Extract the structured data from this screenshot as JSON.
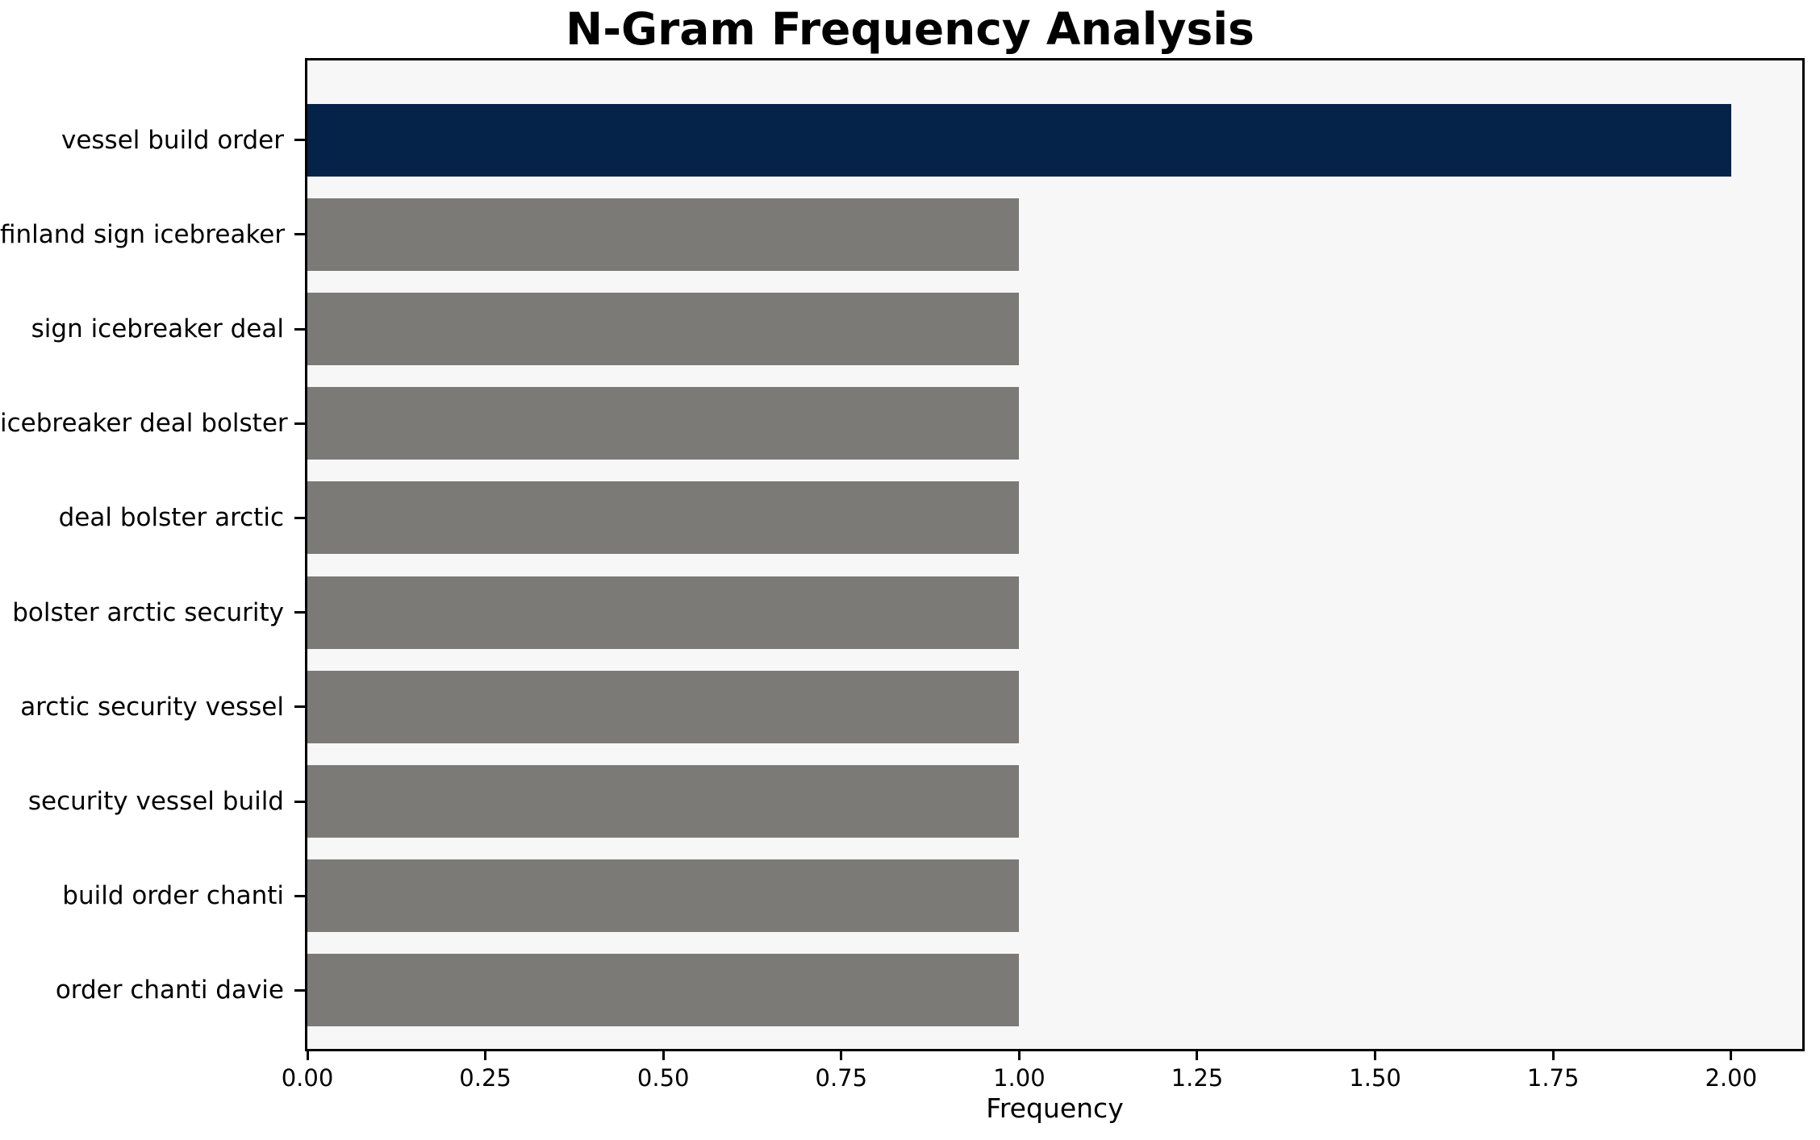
{
  "chart_data": {
    "type": "bar",
    "orientation": "horizontal",
    "title": "N-Gram Frequency Analysis",
    "xlabel": "Frequency",
    "ylabel": "",
    "categories": [
      "vessel build order",
      "finland sign icebreaker",
      "sign icebreaker deal",
      "icebreaker deal bolster",
      "deal bolster arctic",
      "bolster arctic security",
      "arctic security vessel",
      "security vessel build",
      "build order chanti",
      "order chanti davie"
    ],
    "values": [
      2,
      1,
      1,
      1,
      1,
      1,
      1,
      1,
      1,
      1
    ],
    "highlight_index": 0,
    "xlim": [
      0,
      2.1
    ],
    "xticks": [
      0,
      0.25,
      0.5,
      0.75,
      1.0,
      1.25,
      1.5,
      1.75,
      2.0
    ],
    "xtick_labels": [
      "0.00",
      "0.25",
      "0.50",
      "0.75",
      "1.00",
      "1.25",
      "1.50",
      "1.75",
      "2.00"
    ],
    "grid": false,
    "legend_position": "none",
    "colors": {
      "highlight_bar": "#052248",
      "default_bar": "#7b7a77",
      "plot_background": "#f7f7f7",
      "figure_background": "#ffffff",
      "axis": "#000000",
      "text": "#000000"
    }
  }
}
